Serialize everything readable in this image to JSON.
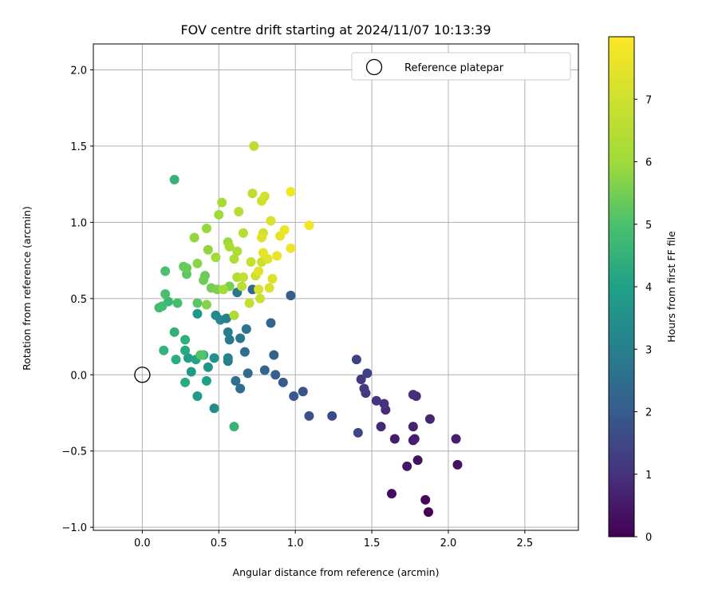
{
  "chart_data": {
    "type": "scatter",
    "title": "FOV centre drift starting at 2024/11/07 10:13:39",
    "xlabel": "Angular distance from reference (arcmin)",
    "ylabel": "Rotation from reference (arcmin)",
    "xlim": [
      -0.32,
      2.85
    ],
    "ylim": [
      -1.02,
      2.17
    ],
    "xticks": [
      0.0,
      0.5,
      1.0,
      1.5,
      2.0,
      2.5
    ],
    "xtick_labels": [
      "0.0",
      "0.5",
      "1.0",
      "1.5",
      "2.0",
      "2.5"
    ],
    "yticks": [
      -1.0,
      -0.5,
      0.0,
      0.5,
      1.0,
      1.5,
      2.0
    ],
    "ytick_labels": [
      "−1.0",
      "−0.5",
      "0.0",
      "0.5",
      "1.0",
      "1.5",
      "2.0"
    ],
    "grid": true,
    "legend": {
      "position": "top-right",
      "entries": [
        {
          "label": "Reference platepar",
          "marker": "open-circle"
        }
      ]
    },
    "reference_point": {
      "x": 0.0,
      "y": 0.0
    },
    "colorbar": {
      "label": "Hours from first FF file",
      "range": [
        0,
        8
      ],
      "ticks": [
        0,
        1,
        2,
        3,
        4,
        5,
        6,
        7
      ],
      "tick_labels": [
        "0",
        "1",
        "2",
        "3",
        "4",
        "5",
        "6",
        "7"
      ],
      "colormap": "viridis"
    },
    "points": [
      [
        1.87,
        -0.9,
        0.05
      ],
      [
        1.85,
        -0.82,
        0.15
      ],
      [
        1.63,
        -0.78,
        0.25
      ],
      [
        1.8,
        -0.56,
        0.3
      ],
      [
        2.06,
        -0.59,
        0.35
      ],
      [
        1.73,
        -0.6,
        0.4
      ],
      [
        1.77,
        -0.43,
        0.5
      ],
      [
        1.65,
        -0.42,
        0.55
      ],
      [
        2.05,
        -0.42,
        0.6
      ],
      [
        1.78,
        -0.42,
        0.65
      ],
      [
        1.77,
        -0.34,
        0.7
      ],
      [
        1.88,
        -0.29,
        0.75
      ],
      [
        1.56,
        -0.34,
        0.8
      ],
      [
        1.59,
        -0.23,
        0.85
      ],
      [
        1.79,
        -0.14,
        0.9
      ],
      [
        1.77,
        -0.13,
        0.95
      ],
      [
        1.58,
        -0.19,
        1.0
      ],
      [
        1.53,
        -0.17,
        1.05
      ],
      [
        1.46,
        -0.12,
        1.1
      ],
      [
        1.43,
        -0.03,
        1.15
      ],
      [
        1.45,
        -0.09,
        1.2
      ],
      [
        1.47,
        0.01,
        1.3
      ],
      [
        1.4,
        0.1,
        1.35
      ],
      [
        1.41,
        -0.38,
        1.45
      ],
      [
        1.24,
        -0.27,
        1.6
      ],
      [
        1.09,
        -0.27,
        1.7
      ],
      [
        1.05,
        -0.11,
        1.8
      ],
      [
        0.99,
        -0.14,
        1.9
      ],
      [
        0.92,
        -0.05,
        2.0
      ],
      [
        0.97,
        0.52,
        2.05
      ],
      [
        0.87,
        0.0,
        2.1
      ],
      [
        0.86,
        0.13,
        2.2
      ],
      [
        0.84,
        0.34,
        2.25
      ],
      [
        0.8,
        0.03,
        2.3
      ],
      [
        0.72,
        0.56,
        2.35
      ],
      [
        0.69,
        0.01,
        2.4
      ],
      [
        0.67,
        0.15,
        2.5
      ],
      [
        0.64,
        -0.09,
        2.55
      ],
      [
        0.61,
        -0.04,
        2.6
      ],
      [
        0.68,
        0.3,
        2.65
      ],
      [
        0.64,
        0.24,
        2.7
      ],
      [
        0.62,
        0.54,
        2.8
      ],
      [
        0.57,
        0.23,
        2.85
      ],
      [
        0.56,
        0.09,
        2.9
      ],
      [
        0.56,
        0.28,
        3.0
      ],
      [
        0.55,
        0.37,
        3.05
      ],
      [
        0.56,
        0.11,
        3.1
      ],
      [
        0.51,
        0.36,
        3.2
      ],
      [
        0.48,
        0.39,
        3.3
      ],
      [
        0.47,
        -0.22,
        3.4
      ],
      [
        0.47,
        0.11,
        3.5
      ],
      [
        0.43,
        0.05,
        3.6
      ],
      [
        0.36,
        0.4,
        3.7
      ],
      [
        0.36,
        -0.14,
        3.75
      ],
      [
        0.32,
        0.02,
        3.8
      ],
      [
        0.3,
        0.11,
        3.9
      ],
      [
        0.42,
        -0.04,
        4.0
      ],
      [
        0.4,
        0.13,
        4.05
      ],
      [
        0.35,
        0.1,
        4.1
      ],
      [
        0.28,
        0.16,
        4.2
      ],
      [
        0.28,
        -0.05,
        4.3
      ],
      [
        0.22,
        0.1,
        4.35
      ],
      [
        0.28,
        0.23,
        4.4
      ],
      [
        0.21,
        0.28,
        4.45
      ],
      [
        0.14,
        0.16,
        4.5
      ],
      [
        0.21,
        1.28,
        4.55
      ],
      [
        0.6,
        -0.34,
        4.6
      ],
      [
        0.17,
        0.48,
        4.7
      ],
      [
        0.11,
        0.44,
        4.8
      ],
      [
        0.13,
        0.45,
        4.85
      ],
      [
        0.23,
        0.47,
        4.9
      ],
      [
        0.15,
        0.53,
        4.95
      ],
      [
        0.15,
        0.68,
        5.0
      ],
      [
        0.38,
        0.13,
        5.05
      ],
      [
        0.39,
        0.13,
        5.1
      ],
      [
        0.36,
        0.47,
        5.2
      ],
      [
        0.29,
        0.66,
        5.25
      ],
      [
        0.27,
        0.71,
        5.3
      ],
      [
        0.29,
        0.7,
        5.35
      ],
      [
        0.41,
        0.65,
        5.4
      ],
      [
        0.4,
        0.62,
        5.45
      ],
      [
        0.45,
        0.57,
        5.5
      ],
      [
        0.57,
        0.58,
        5.55
      ],
      [
        0.49,
        0.56,
        5.6
      ],
      [
        0.42,
        0.46,
        5.7
      ],
      [
        0.36,
        0.73,
        5.75
      ],
      [
        0.43,
        0.82,
        5.8
      ],
      [
        0.34,
        0.9,
        5.85
      ],
      [
        0.42,
        0.96,
        5.9
      ],
      [
        0.56,
        0.87,
        5.95
      ],
      [
        0.5,
        1.05,
        6.0
      ],
      [
        0.48,
        0.77,
        6.05
      ],
      [
        0.53,
        0.56,
        6.1
      ],
      [
        0.52,
        1.13,
        6.15
      ],
      [
        0.57,
        0.84,
        6.2
      ],
      [
        0.6,
        0.39,
        6.25
      ],
      [
        0.62,
        0.81,
        6.3
      ],
      [
        0.6,
        0.76,
        6.35
      ],
      [
        0.62,
        0.64,
        6.4
      ],
      [
        0.63,
        1.07,
        6.45
      ],
      [
        0.66,
        0.93,
        6.5
      ],
      [
        0.65,
        0.58,
        6.55
      ],
      [
        0.73,
        1.5,
        6.6
      ],
      [
        0.72,
        1.19,
        6.65
      ],
      [
        0.66,
        0.64,
        6.7
      ],
      [
        0.7,
        0.47,
        6.75
      ],
      [
        0.71,
        0.74,
        6.8
      ],
      [
        0.78,
        0.74,
        6.85
      ],
      [
        0.77,
        0.5,
        6.9
      ],
      [
        0.74,
        0.65,
        6.95
      ],
      [
        0.78,
        1.14,
        7.0
      ],
      [
        0.8,
        1.17,
        7.05
      ],
      [
        0.79,
        0.93,
        7.1
      ],
      [
        0.76,
        0.56,
        7.15
      ],
      [
        0.84,
        1.01,
        7.2
      ],
      [
        0.83,
        0.57,
        7.25
      ],
      [
        0.85,
        0.63,
        7.3
      ],
      [
        0.78,
        0.9,
        7.35
      ],
      [
        0.76,
        0.68,
        7.4
      ],
      [
        0.82,
        0.76,
        7.45
      ],
      [
        0.79,
        0.8,
        7.5
      ],
      [
        0.9,
        0.91,
        7.55
      ],
      [
        0.88,
        0.78,
        7.6
      ],
      [
        0.93,
        0.95,
        7.65
      ],
      [
        0.97,
        0.83,
        7.7
      ],
      [
        0.97,
        1.2,
        7.75
      ],
      [
        1.09,
        0.98,
        7.8
      ]
    ]
  }
}
